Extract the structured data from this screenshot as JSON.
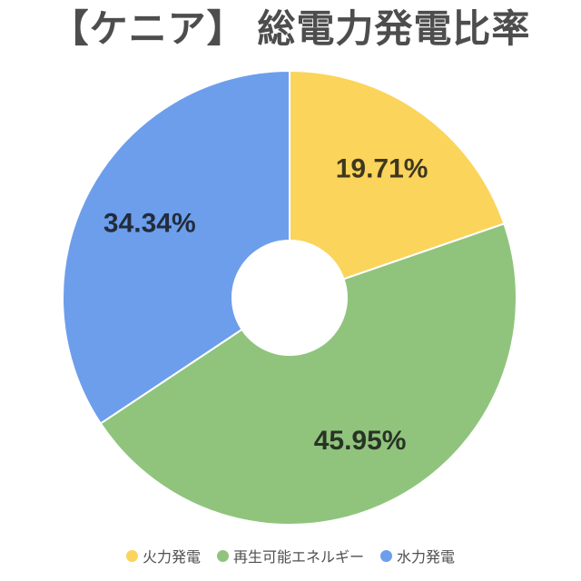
{
  "title": "【ケニア】 総電力発電比率",
  "chart_data": {
    "type": "pie",
    "title": "【ケニア】 総電力発電比率",
    "donut": true,
    "start_angle_deg": 0,
    "direction": "clockwise",
    "inner_radius_ratio": 0.25,
    "legend_position": "bottom",
    "separator_color": "#ffffff",
    "label_color": "rgba(15,15,15,0.8)",
    "slices": [
      {
        "name": "火力発電",
        "value": 19.71,
        "label_text": "19.71%",
        "color": "#FBD45C"
      },
      {
        "name": "再生可能エネルギー",
        "value": 45.95,
        "label_text": "45.95%",
        "color": "#90C47D"
      },
      {
        "name": "水力発電",
        "value": 34.34,
        "label_text": "34.34%",
        "color": "#6D9EEB"
      }
    ]
  }
}
